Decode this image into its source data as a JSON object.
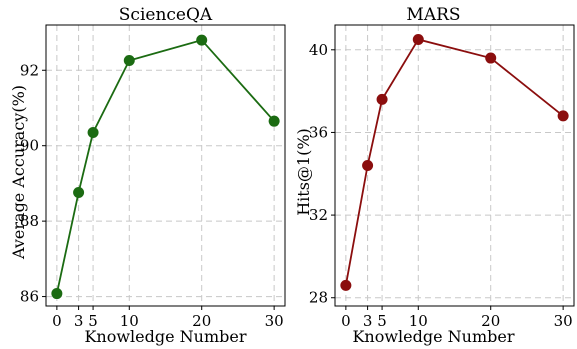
{
  "chart_data": [
    {
      "type": "line",
      "title": "ScienceQA",
      "xlabel": "Knowledge Number",
      "ylabel": "Average Accuracy(%)",
      "x": [
        0,
        3,
        5,
        10,
        20,
        30
      ],
      "series": [
        {
          "values": [
            86.08,
            88.76,
            90.35,
            92.26,
            92.8,
            90.65
          ],
          "color": "#1b6b12"
        }
      ],
      "xticks": [
        "0",
        "3",
        "5",
        "10",
        "20",
        "30"
      ],
      "yticks": [
        "86",
        "88",
        "90",
        "92"
      ],
      "xlim": [
        -1.5,
        31.5
      ],
      "ylim": [
        85.75,
        93.2
      ],
      "grid": true
    },
    {
      "type": "line",
      "title": "MARS",
      "xlabel": "Knowledge Number",
      "ylabel": "Hits@1(%)",
      "x": [
        0,
        3,
        5,
        10,
        20,
        30
      ],
      "series": [
        {
          "values": [
            28.6,
            34.4,
            37.6,
            40.5,
            39.6,
            36.8
          ],
          "color": "#8b0e0e"
        }
      ],
      "xticks": [
        "0",
        "3",
        "5",
        "10",
        "20",
        "30"
      ],
      "yticks": [
        "28",
        "32",
        "36",
        "40"
      ],
      "xlim": [
        -1.5,
        31.5
      ],
      "ylim": [
        27.6,
        41.2
      ],
      "grid": true
    }
  ]
}
